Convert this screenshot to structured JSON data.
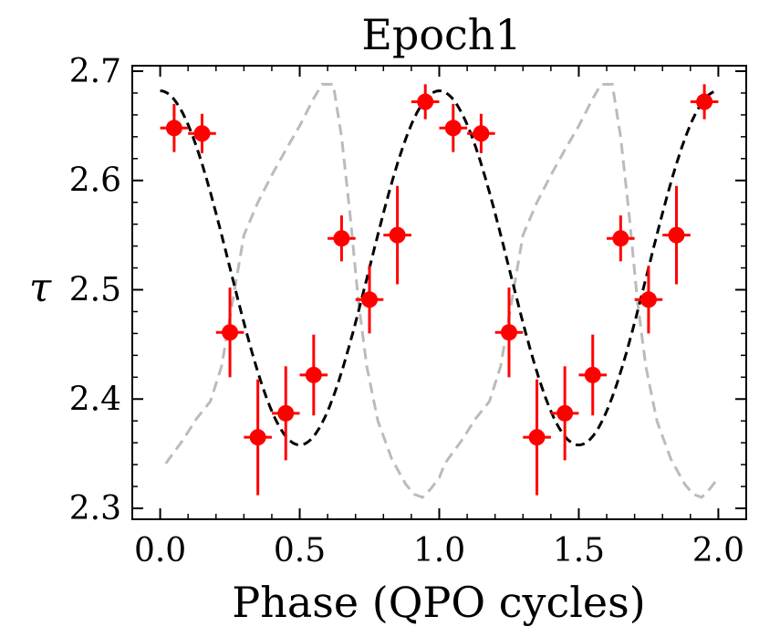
{
  "chart_data": {
    "type": "scatter",
    "title": "Epoch1",
    "xlabel": "Phase (QPO cycles)",
    "ylabel": "τ",
    "xlim": [
      -0.1,
      2.1
    ],
    "ylim": [
      2.29,
      2.705
    ],
    "x_ticks": [
      {
        "value": 0.0,
        "label": "0.0"
      },
      {
        "value": 0.5,
        "label": "0.5"
      },
      {
        "value": 1.0,
        "label": "1.0"
      },
      {
        "value": 1.5,
        "label": "1.5"
      },
      {
        "value": 2.0,
        "label": "2.0"
      }
    ],
    "y_ticks": [
      {
        "value": 2.3,
        "label": "2.3"
      },
      {
        "value": 2.4,
        "label": "2.4"
      },
      {
        "value": 2.5,
        "label": "2.5"
      },
      {
        "value": 2.6,
        "label": "2.6"
      },
      {
        "value": 2.7,
        "label": "2.7"
      }
    ],
    "data_points": {
      "color": "#ff0000",
      "x_err": 0.05,
      "points": [
        {
          "x": 0.05,
          "y": 2.648,
          "yerr": 0.022
        },
        {
          "x": 0.15,
          "y": 2.643,
          "yerr": 0.018
        },
        {
          "x": 0.25,
          "y": 2.461,
          "yerr": 0.041
        },
        {
          "x": 0.35,
          "y": 2.365,
          "yerr": 0.053
        },
        {
          "x": 0.45,
          "y": 2.387,
          "yerr": 0.043
        },
        {
          "x": 0.55,
          "y": 2.422,
          "yerr": 0.037
        },
        {
          "x": 0.65,
          "y": 2.547,
          "yerr": 0.021
        },
        {
          "x": 0.75,
          "y": 2.491,
          "yerr": 0.031
        },
        {
          "x": 0.85,
          "y": 2.55,
          "yerr": 0.045
        },
        {
          "x": 0.95,
          "y": 2.672,
          "yerr": 0.016
        },
        {
          "x": 1.05,
          "y": 2.648,
          "yerr": 0.022
        },
        {
          "x": 1.15,
          "y": 2.643,
          "yerr": 0.018
        },
        {
          "x": 1.25,
          "y": 2.461,
          "yerr": 0.041
        },
        {
          "x": 1.35,
          "y": 2.365,
          "yerr": 0.053
        },
        {
          "x": 1.45,
          "y": 2.387,
          "yerr": 0.043
        },
        {
          "x": 1.55,
          "y": 2.422,
          "yerr": 0.037
        },
        {
          "x": 1.65,
          "y": 2.547,
          "yerr": 0.021
        },
        {
          "x": 1.75,
          "y": 2.491,
          "yerr": 0.031
        },
        {
          "x": 1.85,
          "y": 2.55,
          "yerr": 0.045
        },
        {
          "x": 1.95,
          "y": 2.672,
          "yerr": 0.016
        }
      ]
    },
    "model_curve": {
      "color": "#000000",
      "style": "dashed",
      "mean": 2.52,
      "amplitude": 0.162,
      "period": 1.0,
      "peak_phase": 0.0,
      "x_range": [
        0.0,
        2.0
      ]
    },
    "reference_curve": {
      "color": "#bbbbbb",
      "style": "dashed",
      "points": [
        [
          0.02,
          2.341
        ],
        [
          0.08,
          2.362
        ],
        [
          0.13,
          2.382
        ],
        [
          0.18,
          2.398
        ],
        [
          0.22,
          2.43
        ],
        [
          0.26,
          2.49
        ],
        [
          0.3,
          2.55
        ],
        [
          0.35,
          2.58
        ],
        [
          0.4,
          2.605
        ],
        [
          0.45,
          2.628
        ],
        [
          0.5,
          2.65
        ],
        [
          0.55,
          2.675
        ],
        [
          0.58,
          2.688
        ],
        [
          0.62,
          2.688
        ],
        [
          0.65,
          2.64
        ],
        [
          0.68,
          2.57
        ],
        [
          0.71,
          2.49
        ],
        [
          0.74,
          2.43
        ],
        [
          0.78,
          2.38
        ],
        [
          0.83,
          2.345
        ],
        [
          0.88,
          2.322
        ],
        [
          0.91,
          2.313
        ],
        [
          0.94,
          2.31
        ],
        [
          0.97,
          2.318
        ],
        [
          1.0,
          2.328
        ],
        [
          1.02,
          2.341
        ],
        [
          1.08,
          2.362
        ],
        [
          1.13,
          2.382
        ],
        [
          1.18,
          2.398
        ],
        [
          1.22,
          2.43
        ],
        [
          1.26,
          2.49
        ],
        [
          1.3,
          2.55
        ],
        [
          1.35,
          2.58
        ],
        [
          1.4,
          2.605
        ],
        [
          1.45,
          2.628
        ],
        [
          1.5,
          2.65
        ],
        [
          1.55,
          2.675
        ],
        [
          1.58,
          2.688
        ],
        [
          1.62,
          2.688
        ],
        [
          1.65,
          2.64
        ],
        [
          1.68,
          2.57
        ],
        [
          1.71,
          2.49
        ],
        [
          1.74,
          2.43
        ],
        [
          1.78,
          2.38
        ],
        [
          1.83,
          2.345
        ],
        [
          1.88,
          2.322
        ],
        [
          1.91,
          2.313
        ],
        [
          1.94,
          2.31
        ],
        [
          1.97,
          2.318
        ],
        [
          2.0,
          2.328
        ]
      ]
    }
  }
}
